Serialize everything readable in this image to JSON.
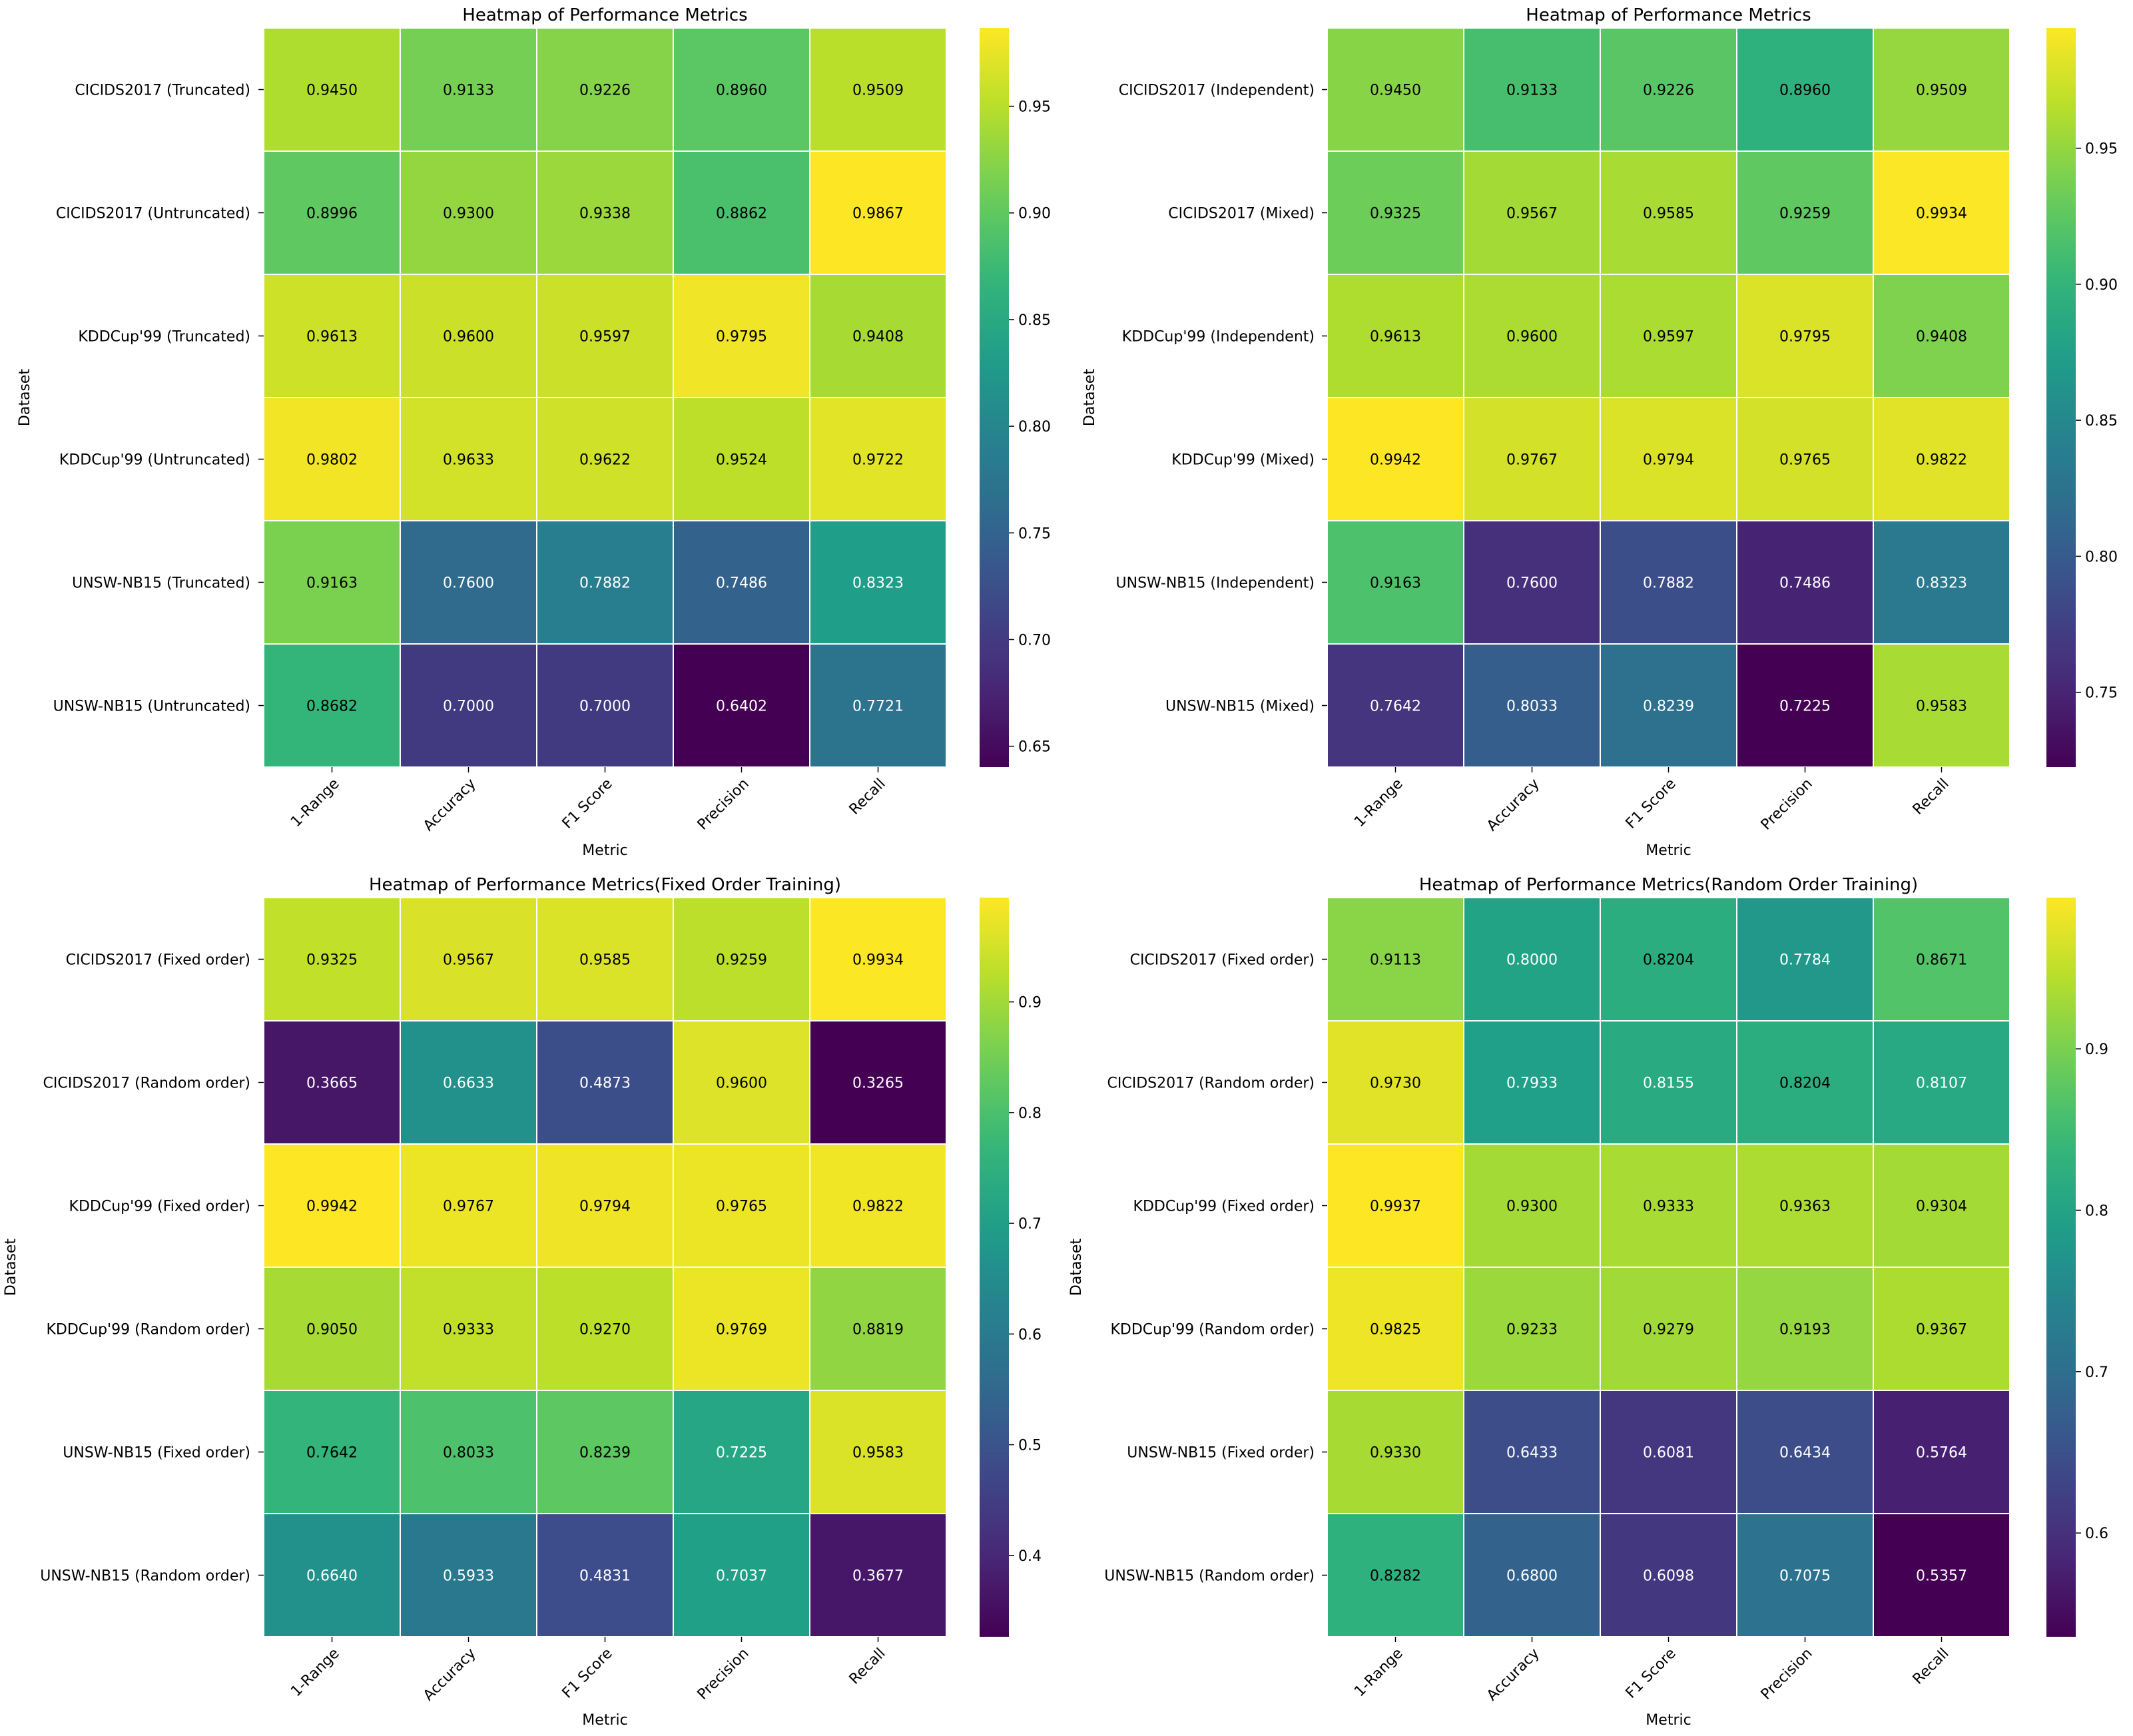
{
  "colors": {
    "viridis": [
      "#440154",
      "#482878",
      "#3e4989",
      "#31688e",
      "#26828e",
      "#1f9e89",
      "#35b779",
      "#6ece58",
      "#b5de2b",
      "#fde725"
    ],
    "cell_border": "#ffffff",
    "text_dark": "#000000",
    "text_light": "#ffffff"
  },
  "chart_data": [
    {
      "type": "heatmap",
      "title": "Heatmap of Performance Metrics",
      "xlabel": "Metric",
      "ylabel": "Dataset",
      "columns": [
        "1-Range",
        "Accuracy",
        "F1 Score",
        "Precision",
        "Recall"
      ],
      "rows": [
        "CICIDS2017 (Truncated)",
        "CICIDS2017 (Untruncated)",
        "KDDCup'99 (Truncated)",
        "KDDCup'99 (Untruncated)",
        "UNSW-NB15 (Truncated)",
        "UNSW-NB15 (Untruncated)"
      ],
      "values": [
        [
          0.945,
          0.9133,
          0.9226,
          0.896,
          0.9509
        ],
        [
          0.8996,
          0.93,
          0.9338,
          0.8862,
          0.9867
        ],
        [
          0.9613,
          0.96,
          0.9597,
          0.9795,
          0.9408
        ],
        [
          0.9802,
          0.9633,
          0.9622,
          0.9524,
          0.9722
        ],
        [
          0.9163,
          0.76,
          0.7882,
          0.7486,
          0.8323
        ],
        [
          0.8682,
          0.7,
          0.7,
          0.6402,
          0.7721
        ]
      ],
      "labels": [
        [
          "0.9450",
          "0.9133",
          "0.9226",
          "0.8960",
          "0.9509"
        ],
        [
          "0.8996",
          "0.9300",
          "0.9338",
          "0.8862",
          "0.9867"
        ],
        [
          "0.9613",
          "0.9600",
          "0.9597",
          "0.9795",
          "0.9408"
        ],
        [
          "0.9802",
          "0.9633",
          "0.9622",
          "0.9524",
          "0.9722"
        ],
        [
          "0.9163",
          "0.7600",
          "0.7882",
          "0.7486",
          "0.8323"
        ],
        [
          "0.8682",
          "0.7000",
          "0.7000",
          "0.6402",
          "0.7721"
        ]
      ],
      "vmin": 0.6402,
      "vmax": 0.9867,
      "colorbar_ticks": [
        0.65,
        0.7,
        0.75,
        0.8,
        0.85,
        0.9,
        0.95
      ],
      "colorbar_tick_labels": [
        "0.65",
        "0.70",
        "0.75",
        "0.80",
        "0.85",
        "0.90",
        "0.95"
      ]
    },
    {
      "type": "heatmap",
      "title": "Heatmap of Performance Metrics",
      "xlabel": "Metric",
      "ylabel": "Dataset",
      "columns": [
        "1-Range",
        "Accuracy",
        "F1 Score",
        "Precision",
        "Recall"
      ],
      "rows": [
        "CICIDS2017 (Independent)",
        "CICIDS2017 (Mixed)",
        "KDDCup'99 (Independent)",
        "KDDCup'99 (Mixed)",
        "UNSW-NB15 (Independent)",
        "UNSW-NB15 (Mixed)"
      ],
      "values": [
        [
          0.945,
          0.9133,
          0.9226,
          0.896,
          0.9509
        ],
        [
          0.9325,
          0.9567,
          0.9585,
          0.9259,
          0.9934
        ],
        [
          0.9613,
          0.96,
          0.9597,
          0.9795,
          0.9408
        ],
        [
          0.9942,
          0.9767,
          0.9794,
          0.9765,
          0.9822
        ],
        [
          0.9163,
          0.76,
          0.7882,
          0.7486,
          0.8323
        ],
        [
          0.7642,
          0.8033,
          0.8239,
          0.7225,
          0.9583
        ]
      ],
      "labels": [
        [
          "0.9450",
          "0.9133",
          "0.9226",
          "0.8960",
          "0.9509"
        ],
        [
          "0.9325",
          "0.9567",
          "0.9585",
          "0.9259",
          "0.9934"
        ],
        [
          "0.9613",
          "0.9600",
          "0.9597",
          "0.9795",
          "0.9408"
        ],
        [
          "0.9942",
          "0.9767",
          "0.9794",
          "0.9765",
          "0.9822"
        ],
        [
          "0.9163",
          "0.7600",
          "0.7882",
          "0.7486",
          "0.8323"
        ],
        [
          "0.7642",
          "0.8033",
          "0.8239",
          "0.7225",
          "0.9583"
        ]
      ],
      "vmin": 0.7225,
      "vmax": 0.9942,
      "colorbar_ticks": [
        0.75,
        0.8,
        0.85,
        0.9,
        0.95
      ],
      "colorbar_tick_labels": [
        "0.75",
        "0.80",
        "0.85",
        "0.90",
        "0.95"
      ]
    },
    {
      "type": "heatmap",
      "title": "Heatmap of Performance Metrics(Fixed Order Training)",
      "xlabel": "Metric",
      "ylabel": "Dataset",
      "columns": [
        "1-Range",
        "Accuracy",
        "F1 Score",
        "Precision",
        "Recall"
      ],
      "rows": [
        "CICIDS2017 (Fixed order)",
        "CICIDS2017 (Random order)",
        "KDDCup'99 (Fixed order)",
        "KDDCup'99 (Random order)",
        "UNSW-NB15 (Fixed order)",
        "UNSW-NB15 (Random order)"
      ],
      "values": [
        [
          0.9325,
          0.9567,
          0.9585,
          0.9259,
          0.9934
        ],
        [
          0.3665,
          0.6633,
          0.4873,
          0.96,
          0.3265
        ],
        [
          0.9942,
          0.9767,
          0.9794,
          0.9765,
          0.9822
        ],
        [
          0.905,
          0.9333,
          0.927,
          0.9769,
          0.8819
        ],
        [
          0.7642,
          0.8033,
          0.8239,
          0.7225,
          0.9583
        ],
        [
          0.664,
          0.5933,
          0.4831,
          0.7037,
          0.3677
        ]
      ],
      "labels": [
        [
          "0.9325",
          "0.9567",
          "0.9585",
          "0.9259",
          "0.9934"
        ],
        [
          "0.3665",
          "0.6633",
          "0.4873",
          "0.9600",
          "0.3265"
        ],
        [
          "0.9942",
          "0.9767",
          "0.9794",
          "0.9765",
          "0.9822"
        ],
        [
          "0.9050",
          "0.9333",
          "0.9270",
          "0.9769",
          "0.8819"
        ],
        [
          "0.7642",
          "0.8033",
          "0.8239",
          "0.7225",
          "0.9583"
        ],
        [
          "0.6640",
          "0.5933",
          "0.4831",
          "0.7037",
          "0.3677"
        ]
      ],
      "vmin": 0.3265,
      "vmax": 0.9942,
      "colorbar_ticks": [
        0.4,
        0.5,
        0.6,
        0.7,
        0.8,
        0.9
      ],
      "colorbar_tick_labels": [
        "0.4",
        "0.5",
        "0.6",
        "0.7",
        "0.8",
        "0.9"
      ]
    },
    {
      "type": "heatmap",
      "title": "Heatmap of Performance Metrics(Random Order Training)",
      "xlabel": "Metric",
      "ylabel": "Dataset",
      "columns": [
        "1-Range",
        "Accuracy",
        "F1 Score",
        "Precision",
        "Recall"
      ],
      "rows": [
        "CICIDS2017 (Fixed order)",
        "CICIDS2017 (Random order)",
        "KDDCup'99 (Fixed order)",
        "KDDCup'99 (Random order)",
        "UNSW-NB15 (Fixed order)",
        "UNSW-NB15 (Random order)"
      ],
      "values": [
        [
          0.9113,
          0.8,
          0.8204,
          0.7784,
          0.8671
        ],
        [
          0.973,
          0.7933,
          0.8155,
          0.8204,
          0.8107
        ],
        [
          0.9937,
          0.93,
          0.9333,
          0.9363,
          0.9304
        ],
        [
          0.9825,
          0.9233,
          0.9279,
          0.9193,
          0.9367
        ],
        [
          0.933,
          0.6433,
          0.6081,
          0.6434,
          0.5764
        ],
        [
          0.8282,
          0.68,
          0.6098,
          0.7075,
          0.5357
        ]
      ],
      "labels": [
        [
          "0.9113",
          "0.8000",
          "0.8204",
          "0.7784",
          "0.8671"
        ],
        [
          "0.9730",
          "0.7933",
          "0.8155",
          "0.8204",
          "0.8107"
        ],
        [
          "0.9937",
          "0.9300",
          "0.9333",
          "0.9363",
          "0.9304"
        ],
        [
          "0.9825",
          "0.9233",
          "0.9279",
          "0.9193",
          "0.9367"
        ],
        [
          "0.9330",
          "0.6433",
          "0.6081",
          "0.6434",
          "0.5764"
        ],
        [
          "0.8282",
          "0.6800",
          "0.6098",
          "0.7075",
          "0.5357"
        ]
      ],
      "vmin": 0.5357,
      "vmax": 0.9937,
      "colorbar_ticks": [
        0.6,
        0.7,
        0.8,
        0.9
      ],
      "colorbar_tick_labels": [
        "0.6",
        "0.7",
        "0.8",
        "0.9"
      ]
    }
  ]
}
